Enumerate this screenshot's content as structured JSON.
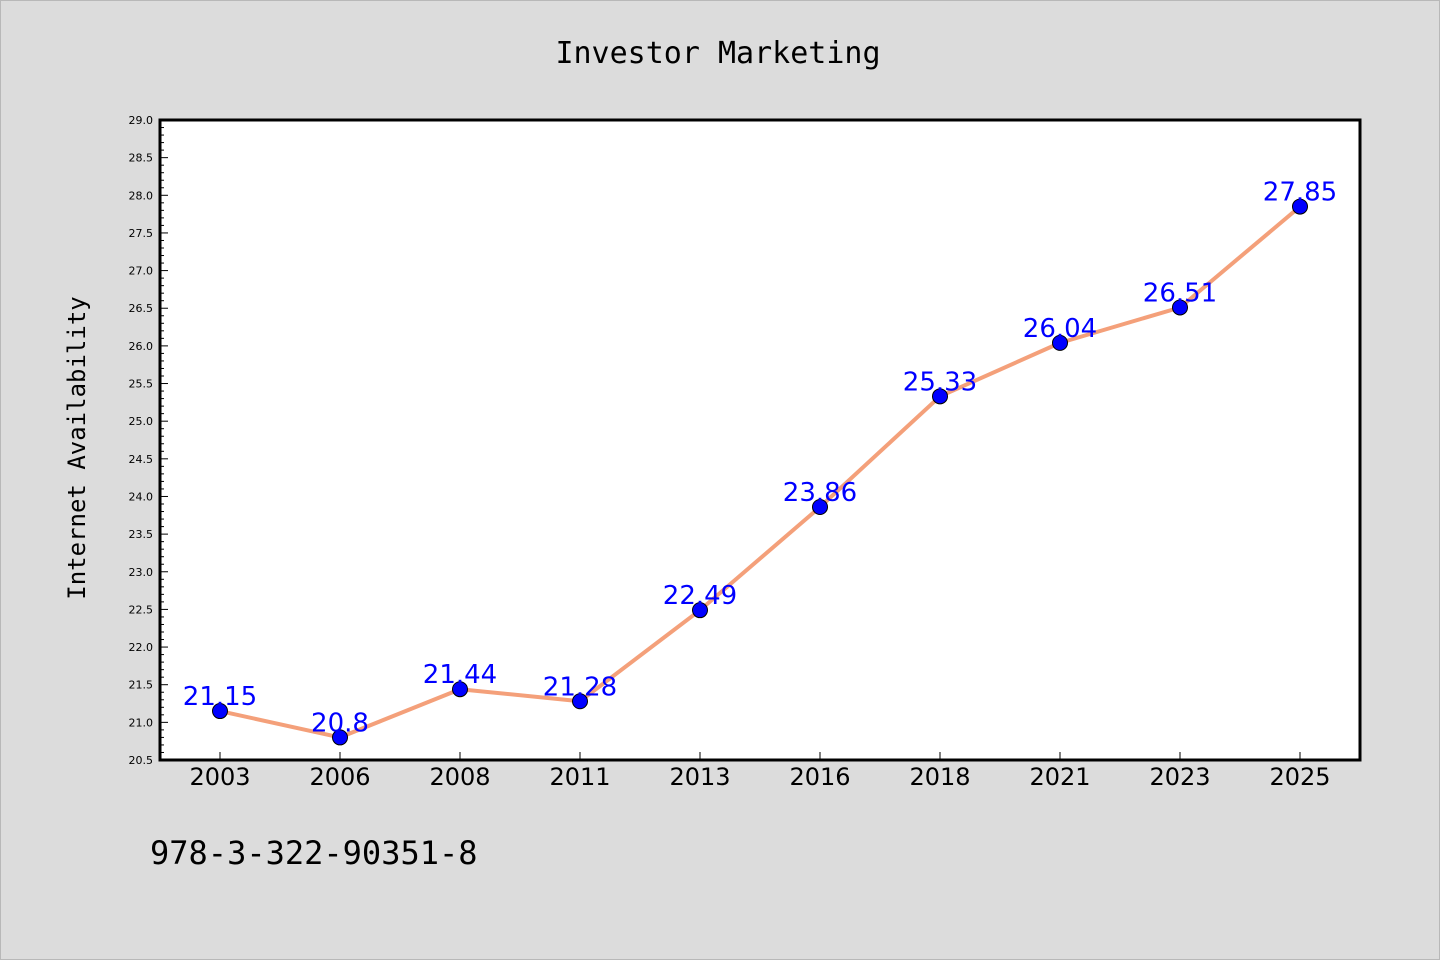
{
  "chart_data": {
    "type": "line",
    "title": "Investor Marketing",
    "xlabel": "",
    "ylabel": "Internet Availability",
    "categories": [
      "2003",
      "2006",
      "2008",
      "2011",
      "2013",
      "2016",
      "2018",
      "2021",
      "2023",
      "2025"
    ],
    "series": [
      {
        "values": [
          21.15,
          20.8,
          21.44,
          21.28,
          22.49,
          23.86,
          25.33,
          26.04,
          26.51,
          27.85
        ],
        "labels": [
          "21.15",
          "20.8",
          "21.44",
          "21.28",
          "22.49",
          "23.86",
          "25.33",
          "26.04",
          "26.51",
          "27.85"
        ],
        "line_color": "#f4a07a",
        "marker_color": "#0000ff"
      }
    ],
    "ylim": [
      20.5,
      29.0
    ],
    "yticks": [
      "20.5",
      "21.0",
      "21.5",
      "22.0",
      "22.5",
      "23.0",
      "23.5",
      "24.0",
      "24.5",
      "25.0",
      "25.5",
      "26.0",
      "26.5",
      "27.0",
      "27.5",
      "28.0",
      "28.5",
      "29.0"
    ],
    "grid": false,
    "legend": "none"
  },
  "footer": {
    "isbn": "978-3-322-90351-8"
  },
  "colors": {
    "background": "#dcdcdc",
    "plot_background": "#ffffff",
    "line": "#f4a07a",
    "marker": "#0000ff",
    "label": "#0000ff"
  }
}
